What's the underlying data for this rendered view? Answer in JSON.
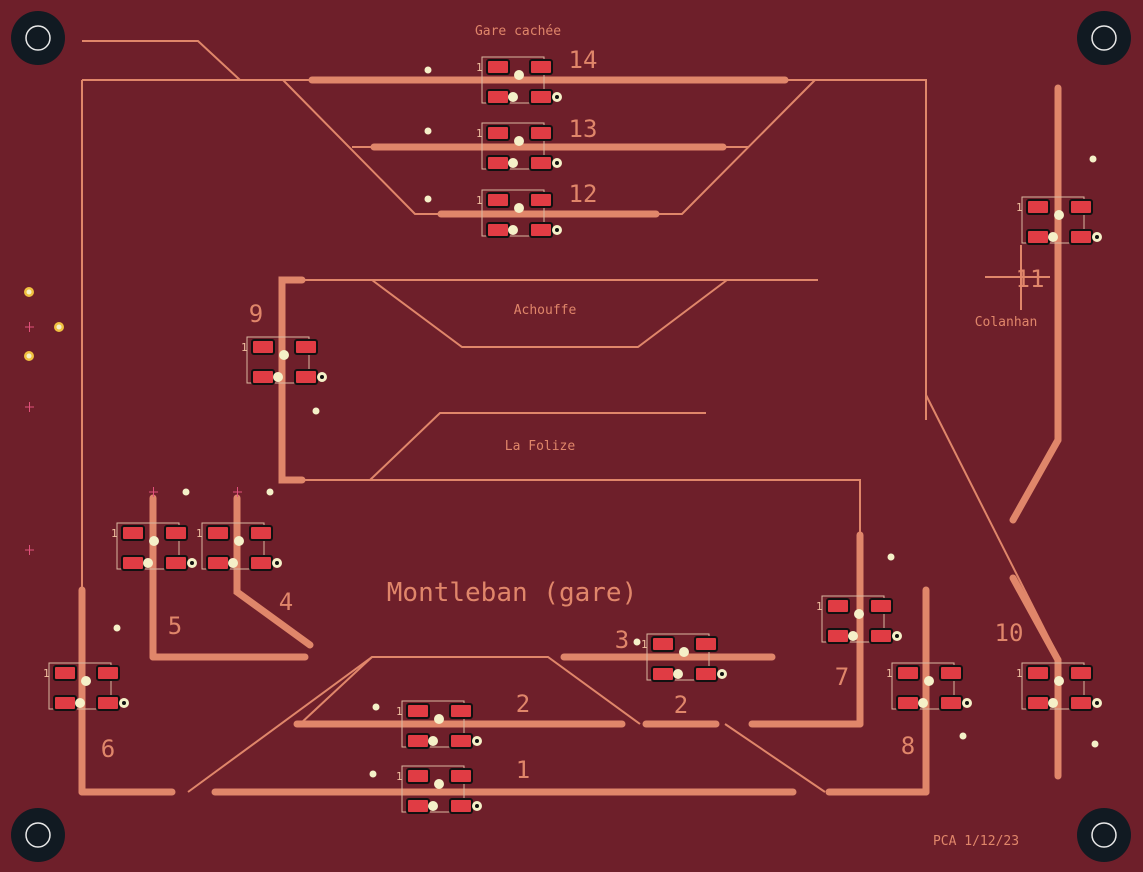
{
  "board": {
    "background_color": "#6e1f2a",
    "trace_color": "#e0866a",
    "pad_color": "#e03c44"
  },
  "labels": {
    "hidden_station": "Gare cachée",
    "achouffe": "Achouffe",
    "la_folize": "La Folize",
    "colanhan": "Colanhan",
    "main_station": "Montleban (gare)",
    "footer": "PCA 1/12/23"
  },
  "track_numbers": {
    "t14": "14",
    "t13": "13",
    "t12": "12",
    "t11": "11",
    "t10": "10",
    "t9": "9",
    "t8": "8",
    "t7": "7",
    "t6": "6",
    "t5": "5",
    "t4": "4",
    "t3": "3",
    "t2a": "2",
    "t2b": "2",
    "t1": "1"
  },
  "pin_marker": "1"
}
